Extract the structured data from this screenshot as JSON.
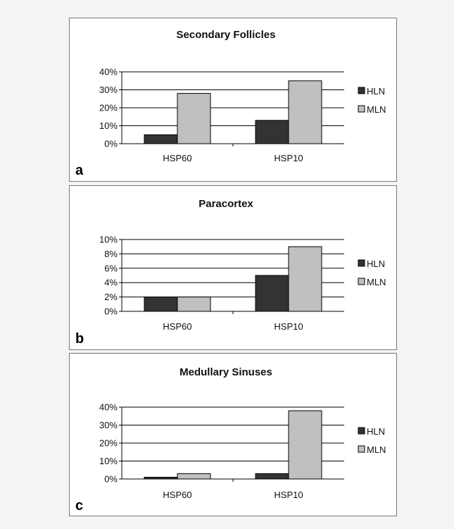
{
  "colors": {
    "HLN": "#333333",
    "MLN": "#c0c0c0",
    "border": "#000000"
  },
  "chart_data": [
    {
      "type": "bar",
      "panel_label": "a",
      "title": "Secondary Follicles",
      "categories": [
        "HSP60",
        "HSP10"
      ],
      "series": [
        {
          "name": "HLN",
          "values": [
            5,
            13
          ]
        },
        {
          "name": "MLN",
          "values": [
            28,
            35
          ]
        }
      ],
      "ylim": [
        0,
        40
      ],
      "yticks": [
        "0%",
        "10%",
        "20%",
        "30%",
        "40%"
      ],
      "ytick_values": [
        0,
        10,
        20,
        30,
        40
      ],
      "xlabel": "",
      "ylabel": "",
      "grid": true,
      "legend": "right"
    },
    {
      "type": "bar",
      "panel_label": "b",
      "title": "Paracortex",
      "categories": [
        "HSP60",
        "HSP10"
      ],
      "series": [
        {
          "name": "HLN",
          "values": [
            2,
            5
          ]
        },
        {
          "name": "MLN",
          "values": [
            2,
            9
          ]
        }
      ],
      "ylim": [
        0,
        10
      ],
      "yticks": [
        "0%",
        "2%",
        "4%",
        "6%",
        "8%",
        "10%"
      ],
      "ytick_values": [
        0,
        2,
        4,
        6,
        8,
        10
      ],
      "xlabel": "",
      "ylabel": "",
      "grid": true,
      "legend": "right"
    },
    {
      "type": "bar",
      "panel_label": "c",
      "title": "Medullary Sinuses",
      "categories": [
        "HSP60",
        "HSP10"
      ],
      "series": [
        {
          "name": "HLN",
          "values": [
            1,
            3
          ]
        },
        {
          "name": "MLN",
          "values": [
            3,
            38
          ]
        }
      ],
      "ylim": [
        0,
        40
      ],
      "yticks": [
        "0%",
        "10%",
        "20%",
        "30%",
        "40%"
      ],
      "ytick_values": [
        0,
        10,
        20,
        30,
        40
      ],
      "xlabel": "",
      "ylabel": "",
      "grid": true,
      "legend": "right"
    }
  ]
}
